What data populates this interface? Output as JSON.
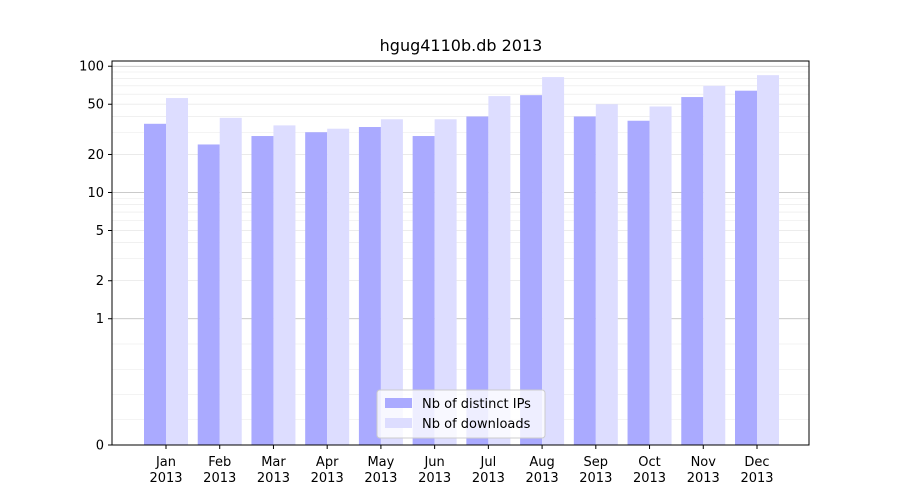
{
  "chart_data": {
    "type": "bar",
    "title": "hgug4110b.db 2013",
    "xlabel": "",
    "ylabel": "",
    "categories": [
      [
        "Jan",
        "2013"
      ],
      [
        "Feb",
        "2013"
      ],
      [
        "Mar",
        "2013"
      ],
      [
        "Apr",
        "2013"
      ],
      [
        "May",
        "2013"
      ],
      [
        "Jun",
        "2013"
      ],
      [
        "Jul",
        "2013"
      ],
      [
        "Aug",
        "2013"
      ],
      [
        "Sep",
        "2013"
      ],
      [
        "Oct",
        "2013"
      ],
      [
        "Nov",
        "2013"
      ],
      [
        "Dec",
        "2013"
      ]
    ],
    "series": [
      {
        "name": "Nb of distinct IPs",
        "color": "#aaaaff",
        "values": [
          35,
          24,
          28,
          30,
          33,
          28,
          40,
          59,
          40,
          37,
          57,
          64
        ]
      },
      {
        "name": "Nb of downloads",
        "color": "#ddddff",
        "values": [
          56,
          39,
          34,
          32,
          38,
          38,
          58,
          82,
          50,
          48,
          70,
          85
        ]
      }
    ],
    "scale": "symlog",
    "ylim": [
      0,
      110
    ],
    "yticks": [
      {
        "value": 0,
        "label": "0"
      },
      {
        "value": 1,
        "label": "1"
      },
      {
        "value": 2,
        "label": "2"
      },
      {
        "value": 5,
        "label": "5"
      },
      {
        "value": 10,
        "label": "10"
      },
      {
        "value": 20,
        "label": "20"
      },
      {
        "value": 50,
        "label": "50"
      },
      {
        "value": 100,
        "label": "100"
      }
    ],
    "grid": true,
    "legend_position": "bottom-center"
  }
}
